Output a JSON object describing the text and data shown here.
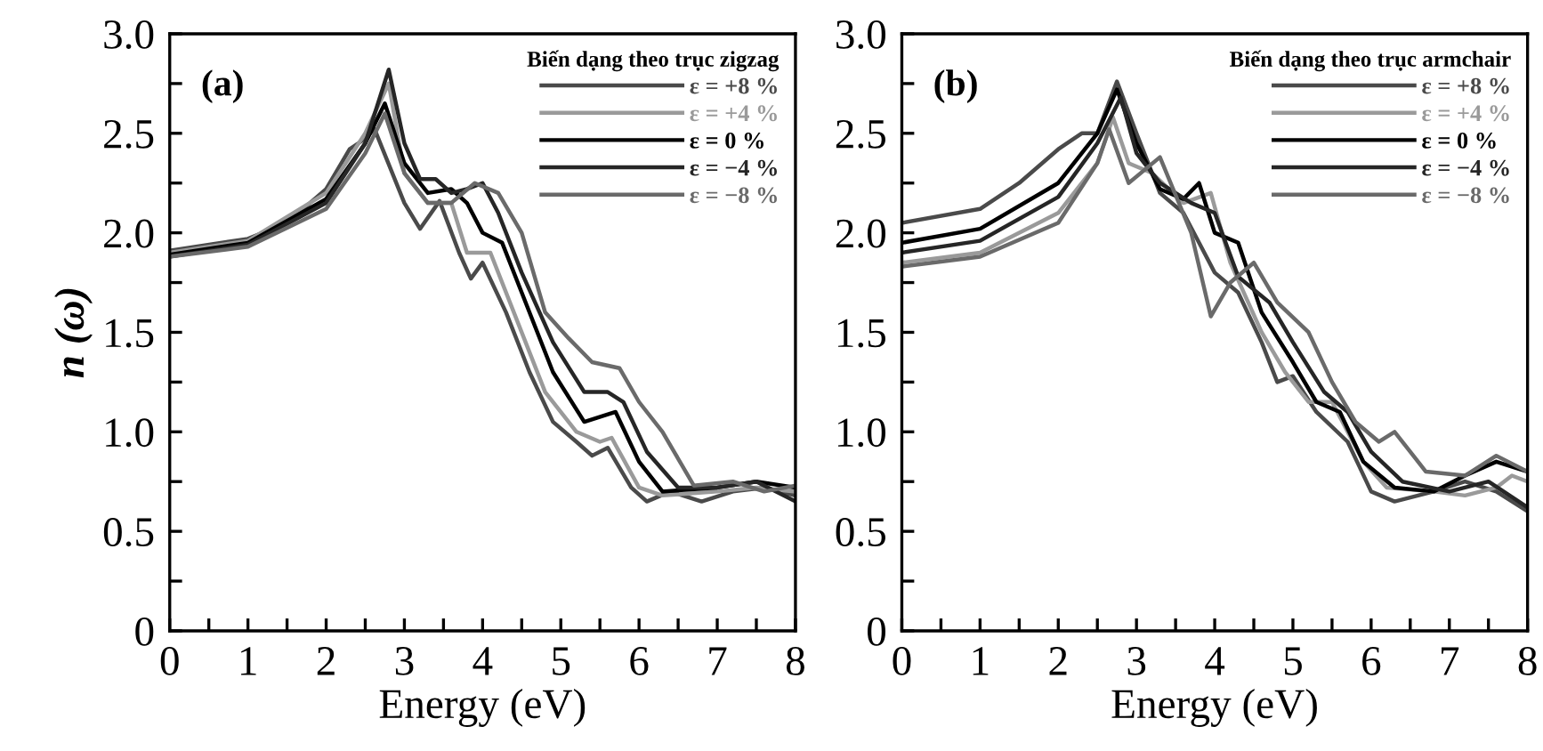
{
  "chart_data": [
    {
      "type": "line",
      "title": "(a)",
      "xlabel": "Energy (eV)",
      "ylabel": "n (ω)",
      "legend_title": "Biến dạng theo trục zigzag",
      "legend": "top right",
      "xlim": [
        0,
        8
      ],
      "ylim": [
        0,
        3.0
      ],
      "xticks": [
        0,
        {
          "value": 0.5,
          "label": null
        },
        1,
        {
          "value": 1.5,
          "label": null
        },
        2,
        {
          "value": 2.5,
          "label": null
        },
        3,
        {
          "value": 3.5,
          "label": null
        },
        4,
        {
          "value": 4.5,
          "label": null
        },
        5,
        {
          "value": 5.5,
          "label": null
        },
        6,
        {
          "value": 6.5,
          "label": null
        },
        7,
        {
          "value": 7.5,
          "label": null
        },
        8
      ],
      "yticks": [
        0,
        {
          "value": 0.25,
          "label": null
        },
        0.5,
        {
          "value": 0.75,
          "label": null
        },
        {
          "value": 1.0,
          "label": "1.0"
        },
        {
          "value": 1.25,
          "label": null
        },
        1.5,
        {
          "value": 1.75,
          "label": null
        },
        {
          "value": 2.0,
          "label": "2.0"
        },
        {
          "value": 2.25,
          "label": null
        },
        2.5,
        {
          "value": 2.75,
          "label": null
        },
        {
          "value": 3.0,
          "label": "3.0"
        }
      ],
      "series": [
        {
          "name": "ε = +8 %",
          "color": "#4a4a4a",
          "x": [
            0,
            1,
            1.5,
            2,
            2.3,
            2.45,
            2.62,
            3.0,
            3.2,
            3.45,
            3.7,
            3.85,
            4.0,
            4.3,
            4.6,
            4.9,
            5.2,
            5.4,
            5.6,
            5.9,
            6.1,
            6.4,
            6.8,
            7.2,
            7.6,
            8
          ],
          "values": [
            1.91,
            1.97,
            2.05,
            2.22,
            2.42,
            2.46,
            2.52,
            2.15,
            2.02,
            2.16,
            1.9,
            1.77,
            1.85,
            1.6,
            1.3,
            1.05,
            0.95,
            0.88,
            0.92,
            0.72,
            0.65,
            0.7,
            0.65,
            0.7,
            0.72,
            0.68
          ]
        },
        {
          "name": "ε = +4 %",
          "color": "#9a9a9a",
          "x": [
            0,
            1,
            2,
            2.5,
            2.8,
            3.0,
            3.3,
            3.6,
            3.8,
            4.1,
            4.4,
            4.8,
            5.2,
            5.5,
            5.65,
            6.0,
            6.3,
            7.0,
            7.5,
            8
          ],
          "values": [
            1.9,
            1.96,
            2.2,
            2.5,
            2.75,
            2.3,
            2.15,
            2.15,
            1.9,
            1.9,
            1.6,
            1.2,
            1.0,
            0.95,
            0.97,
            0.72,
            0.68,
            0.7,
            0.72,
            0.7
          ]
        },
        {
          "name": "ε = 0 %",
          "color": "#000000",
          "x": [
            0,
            1,
            2,
            2.5,
            2.75,
            3.0,
            3.3,
            3.6,
            3.8,
            4.0,
            4.25,
            4.5,
            4.9,
            5.3,
            5.7,
            6.0,
            6.3,
            7.0,
            7.5,
            8
          ],
          "values": [
            1.89,
            1.95,
            2.17,
            2.45,
            2.65,
            2.35,
            2.2,
            2.22,
            2.15,
            2.0,
            1.95,
            1.7,
            1.3,
            1.05,
            1.1,
            0.85,
            0.7,
            0.72,
            0.75,
            0.72
          ]
        },
        {
          "name": "ε = −4 %",
          "color": "#262626",
          "x": [
            0,
            1,
            2,
            2.5,
            2.8,
            3.0,
            3.2,
            3.4,
            3.6,
            3.8,
            4.0,
            4.2,
            4.5,
            4.9,
            5.3,
            5.6,
            5.8,
            6.1,
            6.5,
            7.0,
            7.5,
            8
          ],
          "values": [
            1.88,
            1.94,
            2.15,
            2.45,
            2.82,
            2.45,
            2.27,
            2.27,
            2.2,
            2.22,
            2.25,
            2.1,
            1.8,
            1.45,
            1.2,
            1.2,
            1.15,
            0.9,
            0.72,
            0.72,
            0.75,
            0.65
          ]
        },
        {
          "name": "ε = −8 %",
          "color": "#6a6a6a",
          "x": [
            0,
            1,
            2,
            2.5,
            2.75,
            3.0,
            3.3,
            3.6,
            3.9,
            4.2,
            4.5,
            4.8,
            5.1,
            5.4,
            5.75,
            6.0,
            6.3,
            6.7,
            7.2,
            7.6,
            8
          ],
          "values": [
            1.88,
            1.93,
            2.12,
            2.4,
            2.6,
            2.3,
            2.15,
            2.15,
            2.25,
            2.2,
            2.0,
            1.6,
            1.47,
            1.35,
            1.32,
            1.15,
            1.0,
            0.73,
            0.75,
            0.7,
            0.73
          ]
        }
      ]
    },
    {
      "type": "line",
      "title": "(b)",
      "xlabel": "Energy (eV)",
      "legend_title": "Biến dạng theo trục armchair",
      "legend": "top right",
      "xlim": [
        0,
        8
      ],
      "ylim": [
        0,
        3.0
      ],
      "xticks": [
        0,
        {
          "value": 0.5,
          "label": null
        },
        1,
        {
          "value": 1.5,
          "label": null
        },
        2,
        {
          "value": 2.5,
          "label": null
        },
        3,
        {
          "value": 3.5,
          "label": null
        },
        4,
        {
          "value": 4.5,
          "label": null
        },
        5,
        {
          "value": 5.5,
          "label": null
        },
        6,
        {
          "value": 6.5,
          "label": null
        },
        7,
        {
          "value": 7.5,
          "label": null
        },
        8
      ],
      "yticks": [
        0,
        {
          "value": 0.25,
          "label": null
        },
        0.5,
        {
          "value": 0.75,
          "label": null
        },
        {
          "value": 1.0,
          "label": "1.0"
        },
        {
          "value": 1.25,
          "label": null
        },
        1.5,
        {
          "value": 1.75,
          "label": null
        },
        {
          "value": 2.0,
          "label": "2.0"
        },
        {
          "value": 2.25,
          "label": null
        },
        2.5,
        {
          "value": 2.75,
          "label": null
        },
        {
          "value": 3.0,
          "label": "3.0"
        }
      ],
      "series": [
        {
          "name": "ε = +8 %",
          "color": "#4a4a4a",
          "x": [
            0,
            1,
            1.5,
            2,
            2.3,
            2.5,
            2.75,
            3.0,
            3.3,
            3.6,
            3.8,
            4.0,
            4.3,
            4.6,
            4.8,
            5.0,
            5.3,
            5.7,
            6.0,
            6.3,
            6.8,
            7.2,
            7.6,
            8
          ],
          "values": [
            2.05,
            2.12,
            2.25,
            2.42,
            2.5,
            2.5,
            2.76,
            2.5,
            2.2,
            2.1,
            1.95,
            1.8,
            1.7,
            1.45,
            1.25,
            1.28,
            1.1,
            0.95,
            0.7,
            0.65,
            0.7,
            0.75,
            0.7,
            0.6
          ]
        },
        {
          "name": "ε = +4 %",
          "color": "#9a9a9a",
          "x": [
            0,
            1,
            2,
            2.5,
            2.7,
            2.9,
            3.2,
            3.6,
            3.95,
            4.2,
            4.6,
            4.9,
            5.2,
            5.5,
            5.9,
            6.2,
            6.8,
            7.2,
            7.6,
            7.8,
            8
          ],
          "values": [
            1.85,
            1.9,
            2.1,
            2.35,
            2.58,
            2.35,
            2.3,
            2.15,
            2.2,
            1.85,
            1.5,
            1.3,
            1.15,
            1.15,
            0.85,
            0.72,
            0.7,
            0.68,
            0.72,
            0.78,
            0.75
          ]
        },
        {
          "name": "ε = 0 %",
          "color": "#000000",
          "x": [
            0,
            1,
            2,
            2.5,
            2.75,
            3.0,
            3.3,
            3.6,
            3.8,
            4.0,
            4.3,
            4.6,
            5.0,
            5.3,
            5.6,
            5.9,
            6.3,
            6.8,
            7.2,
            7.6,
            8
          ],
          "values": [
            1.95,
            2.02,
            2.25,
            2.5,
            2.72,
            2.45,
            2.22,
            2.17,
            2.25,
            2.0,
            1.95,
            1.6,
            1.35,
            1.15,
            1.1,
            0.85,
            0.72,
            0.7,
            0.78,
            0.85,
            0.8
          ]
        },
        {
          "name": "ε = −4 %",
          "color": "#262626",
          "x": [
            0,
            1,
            2,
            2.5,
            2.8,
            3.0,
            3.3,
            3.7,
            4.0,
            4.3,
            4.7,
            5.0,
            5.4,
            5.7,
            6.0,
            6.4,
            7.0,
            7.5,
            8
          ],
          "values": [
            1.9,
            1.96,
            2.18,
            2.45,
            2.68,
            2.4,
            2.25,
            2.15,
            2.1,
            1.78,
            1.65,
            1.45,
            1.2,
            1.1,
            0.9,
            0.75,
            0.7,
            0.75,
            0.62
          ]
        },
        {
          "name": "ε = −8 %",
          "color": "#6a6a6a",
          "x": [
            0,
            1,
            2,
            2.5,
            2.65,
            2.9,
            3.3,
            3.7,
            3.95,
            4.2,
            4.5,
            4.8,
            5.2,
            5.5,
            5.8,
            6.1,
            6.3,
            6.7,
            7.2,
            7.6,
            8
          ],
          "values": [
            1.83,
            1.88,
            2.05,
            2.35,
            2.52,
            2.25,
            2.38,
            2.0,
            1.58,
            1.75,
            1.85,
            1.65,
            1.5,
            1.25,
            1.05,
            0.95,
            1.0,
            0.8,
            0.78,
            0.88,
            0.8
          ]
        }
      ]
    }
  ]
}
